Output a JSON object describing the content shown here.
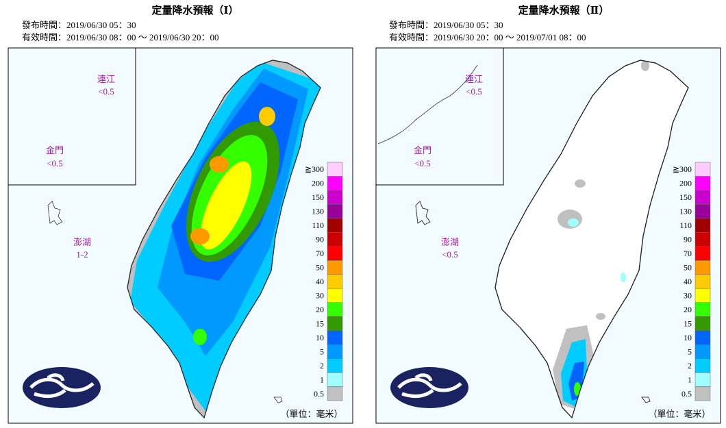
{
  "panels": [
    {
      "title": "定量降水預報（Ⅰ）",
      "issued": "發布時間：2019/06/30 05：30",
      "valid": "有效時間：2019/06/30 08：00 ～ 2019/06/30 20：00",
      "islands": [
        {
          "name": "連江",
          "value": "<0.5"
        },
        {
          "name": "金門",
          "value": "<0.5"
        },
        {
          "name": "澎湖",
          "value": "1-2"
        }
      ]
    },
    {
      "title": "定量降水預報（Ⅱ）",
      "issued": "發布時間：2019/06/30 05：30",
      "valid": "有效時間：2019/06/30 20：00 ～ 2019/07/01 08：00",
      "islands": [
        {
          "name": "連江",
          "value": "<0.5"
        },
        {
          "name": "金門",
          "value": "<0.5"
        },
        {
          "name": "澎湖",
          "value": "<0.5"
        }
      ]
    }
  ],
  "legend": {
    "labels": [
      "0.5",
      "1",
      "2",
      "5",
      "10",
      "15",
      "20",
      "30",
      "40",
      "50",
      "70",
      "90",
      "110",
      "130",
      "150",
      "200",
      "≧300"
    ],
    "colors": [
      "#c0c0c0",
      "#9ffeff",
      "#00ccff",
      "#0099ff",
      "#0066ff",
      "#339900",
      "#33ff00",
      "#ffff00",
      "#ffcc00",
      "#ff9900",
      "#ff0000",
      "#cc0000",
      "#a00000",
      "#990099",
      "#cc00cc",
      "#ff00ff",
      "#ffccff"
    ],
    "unit": "（單位：毫米）"
  }
}
